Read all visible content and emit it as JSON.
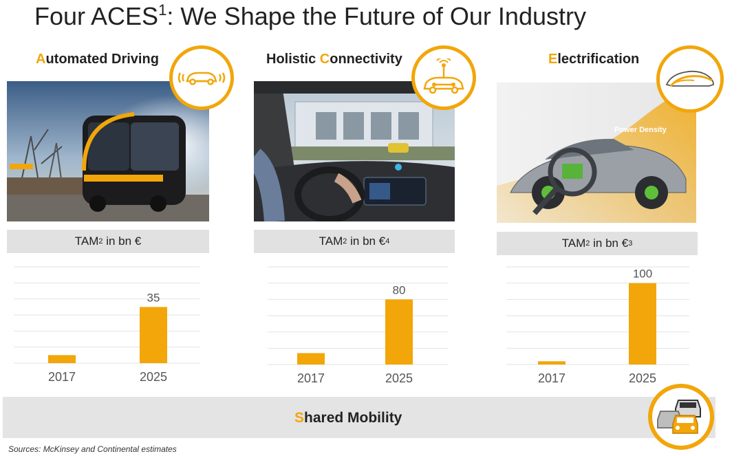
{
  "page": {
    "title": "Four ACES",
    "title_sup": "1",
    "title_rest": ": We Shape the Future of Our Industry",
    "sources": "Sources: McKinsey and Continental estimates",
    "accent_color": "#f2a60a"
  },
  "sections": [
    {
      "first_letter": "A",
      "rest": "utomated Driving",
      "icon": "autonomous-car-icon",
      "tam_label": "TAM",
      "tam_sup": "2",
      "tam_unit": " in bn €",
      "tam_unit_sup": ""
    },
    {
      "prefix": "Holistic ",
      "first_letter": "C",
      "rest": "onnectivity",
      "icon": "connected-car-icon",
      "tam_label": "TAM",
      "tam_sup": "2",
      "tam_unit": " in bn €",
      "tam_unit_sup": "4"
    },
    {
      "first_letter": "E",
      "rest": "lectrification",
      "icon": "electric-car-icon",
      "photo_text": "Power Density",
      "tam_label": "TAM",
      "tam_sup": "2",
      "tam_unit": " in bn €",
      "tam_unit_sup": "3"
    }
  ],
  "shared": {
    "first_letter": "S",
    "rest": "hared Mobility",
    "icon": "shared-cars-icon"
  },
  "chart_data": [
    {
      "type": "bar",
      "title": "",
      "categories": [
        "2017",
        "2025"
      ],
      "values": [
        5,
        35
      ],
      "data_labels": [
        "",
        "35"
      ],
      "ylim": [
        0,
        60
      ],
      "grid": true,
      "color": "#f2a60a"
    },
    {
      "type": "bar",
      "title": "",
      "categories": [
        "2017",
        "2025"
      ],
      "values": [
        14,
        80
      ],
      "data_labels": [
        "",
        "80"
      ],
      "ylim": [
        0,
        120
      ],
      "grid": true,
      "color": "#f2a60a"
    },
    {
      "type": "bar",
      "title": "",
      "categories": [
        "2017",
        "2025"
      ],
      "values": [
        4,
        100
      ],
      "data_labels": [
        "",
        "100"
      ],
      "ylim": [
        0,
        120
      ],
      "grid": true,
      "color": "#f2a60a"
    }
  ]
}
